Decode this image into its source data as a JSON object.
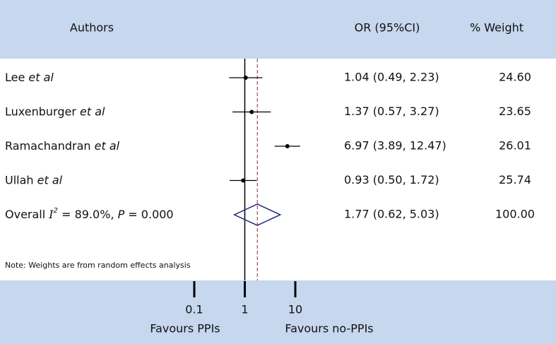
{
  "chart_data": {
    "type": "forest",
    "headers": {
      "authors": "Authors",
      "or": "OR (95%CI)",
      "weight": "% Weight"
    },
    "studies": [
      {
        "name": "Lee",
        "suffix": "et al",
        "or": 1.04,
        "lower": 0.49,
        "upper": 2.23,
        "or_label": "1.04 (0.49, 2.23)",
        "weight": "24.60"
      },
      {
        "name": "Luxenburger",
        "suffix": "et al",
        "or": 1.37,
        "lower": 0.57,
        "upper": 3.27,
        "or_label": "1.37 (0.57, 3.27)",
        "weight": "23.65"
      },
      {
        "name": "Ramachandran",
        "suffix": "et al",
        "or": 6.97,
        "lower": 3.89,
        "upper": 12.47,
        "or_label": "6.97 (3.89, 12.47)",
        "weight": "26.01"
      },
      {
        "name": "Ullah",
        "suffix": "et al",
        "or": 0.93,
        "lower": 0.5,
        "upper": 1.72,
        "or_label": "0.93 (0.50, 1.72)",
        "weight": "25.74"
      }
    ],
    "overall": {
      "label": "Overall",
      "i2_symbol": "I",
      "i2_sup": "2",
      "i2_text": " = 89.0%, ",
      "p_symbol": "P",
      "p_text": " = 0.000",
      "or": 1.77,
      "lower": 0.62,
      "upper": 5.03,
      "or_label": "1.77 (0.62, 5.03)",
      "weight": "100.00"
    },
    "note": "Note: Weights are from random effects analysis",
    "x_log": true,
    "xlim": [
      0.1,
      10
    ],
    "xticks": [
      0.1,
      1,
      10
    ],
    "reference_line": 1,
    "x_left_label": "Favours PPIs",
    "x_right_label": "Favours no-PPIs",
    "marker_color": "#000000",
    "diamond_color": "#1f2a7a",
    "overall_line_color": "#8b2a3a",
    "band_color": "#c6d7ee"
  }
}
